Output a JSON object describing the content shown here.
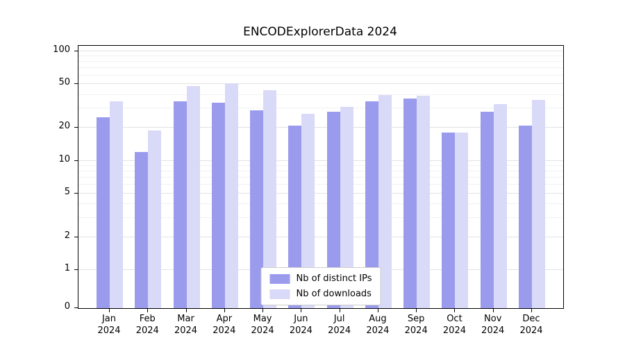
{
  "title": "ENCODExplorerData 2024",
  "chart_data": {
    "type": "bar",
    "title": "ENCODExplorerData 2024",
    "categories": [
      "Jan 2024",
      "Feb 2024",
      "Mar 2024",
      "Apr 2024",
      "May 2024",
      "Jun 2024",
      "Jul 2024",
      "Aug 2024",
      "Sep 2024",
      "Oct 2024",
      "Nov 2024",
      "Dec 2024"
    ],
    "series": [
      {
        "name": "Nb of distinct IPs",
        "color": "#9b9bee",
        "values": [
          25,
          12,
          35,
          34,
          29,
          21,
          28,
          35,
          37,
          18,
          28,
          21
        ]
      },
      {
        "name": "Nb of downloads",
        "color": "#d9d9f8",
        "values": [
          35,
          19,
          48,
          51,
          44,
          27,
          31,
          40,
          39,
          18,
          33,
          36
        ]
      }
    ],
    "xlabel": "",
    "ylabel": "",
    "yscale": "symlog",
    "yticks": [
      0,
      1,
      2,
      5,
      10,
      20,
      50,
      100
    ],
    "ylim": [
      0,
      110
    ],
    "grid": true,
    "legend_position": "lower center"
  },
  "colors": {
    "bar_dark": "#9b9bee",
    "bar_light": "#d9d9f8",
    "grid_major": "#e2e2e2",
    "grid_minor": "#f1f1f1",
    "axis": "#000000",
    "background": "#ffffff"
  }
}
